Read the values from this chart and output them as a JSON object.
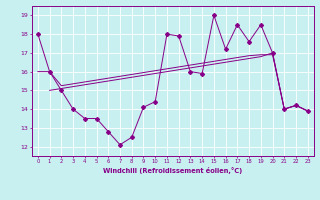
{
  "bg_color": "#c8f0f0",
  "grid_color": "#ffffff",
  "line_color": "#880088",
  "xlabel": "Windchill (Refroidissement éolien,°C)",
  "ylim": [
    11.5,
    19.5
  ],
  "yticks": [
    12,
    13,
    14,
    15,
    16,
    17,
    18,
    19
  ],
  "xlim": [
    -0.5,
    23.5
  ],
  "xticks": [
    0,
    1,
    2,
    3,
    4,
    5,
    6,
    7,
    8,
    9,
    10,
    11,
    12,
    13,
    14,
    15,
    16,
    17,
    18,
    19,
    20,
    21,
    22,
    23
  ],
  "series1_x": [
    0,
    1,
    2,
    3,
    4,
    5,
    6,
    7,
    8,
    9,
    10,
    11,
    12,
    13,
    14,
    15,
    16,
    17,
    18,
    19,
    20,
    21,
    22,
    23
  ],
  "series1_y": [
    18.0,
    16.0,
    15.0,
    14.0,
    13.5,
    13.5,
    12.8,
    12.1,
    12.5,
    14.1,
    14.4,
    18.0,
    17.9,
    16.0,
    15.9,
    19.0,
    17.2,
    18.5,
    17.6,
    18.5,
    17.0,
    14.0,
    14.2,
    13.9
  ],
  "series2_x": [
    0,
    1,
    2,
    3,
    4,
    5,
    6,
    7,
    8,
    9,
    10,
    11,
    12,
    13,
    14,
    15,
    16,
    17,
    18,
    19,
    20,
    21,
    22,
    23
  ],
  "series2_y": [
    16.0,
    16.0,
    15.25,
    15.35,
    15.45,
    15.55,
    15.65,
    15.75,
    15.85,
    15.95,
    16.05,
    16.15,
    16.25,
    16.35,
    16.45,
    16.55,
    16.65,
    16.75,
    16.85,
    16.9,
    16.9,
    14.0,
    14.2,
    13.9
  ],
  "series3_x": [
    1,
    2,
    3,
    4,
    5,
    6,
    7,
    8,
    9,
    10,
    11,
    12,
    13,
    14,
    15,
    16,
    17,
    18,
    19,
    20,
    21,
    22,
    23
  ],
  "series3_y": [
    15.0,
    15.1,
    15.2,
    15.3,
    15.4,
    15.5,
    15.6,
    15.7,
    15.8,
    15.9,
    16.0,
    16.1,
    16.2,
    16.3,
    16.4,
    16.5,
    16.6,
    16.7,
    16.8,
    17.0,
    14.0,
    14.2,
    13.9
  ]
}
